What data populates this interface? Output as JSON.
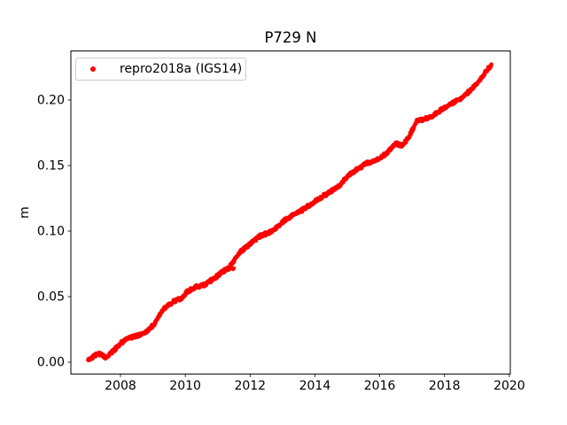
{
  "chart_data": {
    "type": "scatter",
    "title": "P729 N",
    "xlabel": "",
    "ylabel": "m",
    "xlim": [
      2006.47,
      2020.03
    ],
    "ylim": [
      -0.00905,
      0.23743
    ],
    "grid": false,
    "xticks": {
      "values": [
        2008,
        2010,
        2012,
        2014,
        2016,
        2018,
        2020
      ],
      "labels": [
        "2008",
        "2010",
        "2012",
        "2014",
        "2016",
        "2018",
        "2020"
      ]
    },
    "yticks": {
      "values": [
        0.0,
        0.05,
        0.1,
        0.15,
        0.2
      ],
      "labels": [
        "0.00",
        "0.05",
        "0.10",
        "0.15",
        "0.20"
      ]
    },
    "legend": {
      "position": "upper-left",
      "entries": [
        {
          "label": "repro2018a (IGS14)",
          "marker": "dot",
          "color": "#ff0000"
        }
      ]
    },
    "series": [
      {
        "name": "repro2018a (IGS14)",
        "color": "#ff0000",
        "marker": "dot",
        "x_start": 2007.0,
        "x_end": 2019.45,
        "points_per_year": 130,
        "noise_amplitude_m": 0.0016,
        "trend_anchors": [
          [
            2007.0,
            0.0015
          ],
          [
            2007.25,
            0.006
          ],
          [
            2007.4,
            0.006
          ],
          [
            2007.55,
            0.0035
          ],
          [
            2007.8,
            0.009
          ],
          [
            2008.0,
            0.0145
          ],
          [
            2008.3,
            0.019
          ],
          [
            2008.55,
            0.0205
          ],
          [
            2008.8,
            0.023
          ],
          [
            2009.05,
            0.029
          ],
          [
            2009.25,
            0.038
          ],
          [
            2009.45,
            0.043
          ],
          [
            2009.65,
            0.0465
          ],
          [
            2009.9,
            0.049
          ],
          [
            2010.05,
            0.0535
          ],
          [
            2010.35,
            0.0575
          ],
          [
            2010.6,
            0.059
          ],
          [
            2010.9,
            0.064
          ],
          [
            2011.1,
            0.068
          ],
          [
            2011.35,
            0.072
          ],
          [
            2011.65,
            0.083
          ],
          [
            2012.0,
            0.0905
          ],
          [
            2012.3,
            0.096
          ],
          [
            2012.55,
            0.0985
          ],
          [
            2012.8,
            0.102
          ],
          [
            2013.0,
            0.107
          ],
          [
            2013.3,
            0.112
          ],
          [
            2013.6,
            0.116
          ],
          [
            2014.0,
            0.1225
          ],
          [
            2014.4,
            0.129
          ],
          [
            2014.7,
            0.1335
          ],
          [
            2015.0,
            0.1415
          ],
          [
            2015.3,
            0.147
          ],
          [
            2015.6,
            0.152
          ],
          [
            2015.9,
            0.154
          ],
          [
            2016.2,
            0.159
          ],
          [
            2016.5,
            0.167
          ],
          [
            2016.7,
            0.165
          ],
          [
            2016.9,
            0.172
          ],
          [
            2017.15,
            0.184
          ],
          [
            2017.4,
            0.186
          ],
          [
            2017.6,
            0.187
          ],
          [
            2017.8,
            0.191
          ],
          [
            2018.0,
            0.194
          ],
          [
            2018.3,
            0.1985
          ],
          [
            2018.55,
            0.202
          ],
          [
            2018.8,
            0.2075
          ],
          [
            2019.0,
            0.2125
          ],
          [
            2019.2,
            0.219
          ],
          [
            2019.35,
            0.224
          ],
          [
            2019.45,
            0.2265
          ]
        ],
        "outliers": [
          [
            2011.44,
            0.0713
          ],
          [
            2011.47,
            0.0709
          ],
          [
            2011.5,
            0.0716
          ]
        ]
      }
    ],
    "colors": {
      "background": "#ffffff",
      "axis": "#000000",
      "text": "#000000",
      "legend_border": "#cccccc",
      "marker": "#ff0000"
    }
  }
}
